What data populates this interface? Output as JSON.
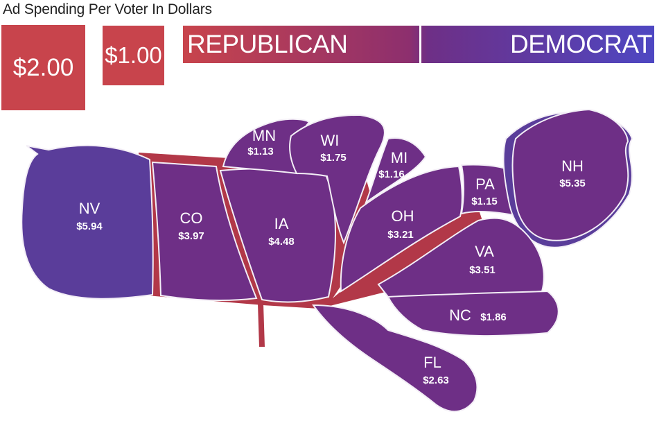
{
  "title": "Ad Spending Per Voter In Dollars",
  "legend": {
    "size_two": "$2.00",
    "size_one": "$1.00",
    "republican": "REPUBLICAN",
    "democrat": "DEMOCRAT"
  },
  "colors": {
    "republican": "#c8444c",
    "democrat": "#4e47c2",
    "state": "#6e2f86",
    "border": "#f3eef6"
  },
  "states": [
    {
      "abbr": "NV",
      "value": "$5.94"
    },
    {
      "abbr": "CO",
      "value": "$3.97"
    },
    {
      "abbr": "IA",
      "value": "$4.48"
    },
    {
      "abbr": "MN",
      "value": "$1.13"
    },
    {
      "abbr": "WI",
      "value": "$1.75"
    },
    {
      "abbr": "MI",
      "value": "$1.16"
    },
    {
      "abbr": "OH",
      "value": "$3.21"
    },
    {
      "abbr": "PA",
      "value": "$1.15"
    },
    {
      "abbr": "NH",
      "value": "$5.35"
    },
    {
      "abbr": "VA",
      "value": "$3.51"
    },
    {
      "abbr": "NC",
      "value": "$1.86"
    },
    {
      "abbr": "FL",
      "value": "$2.63"
    }
  ]
}
